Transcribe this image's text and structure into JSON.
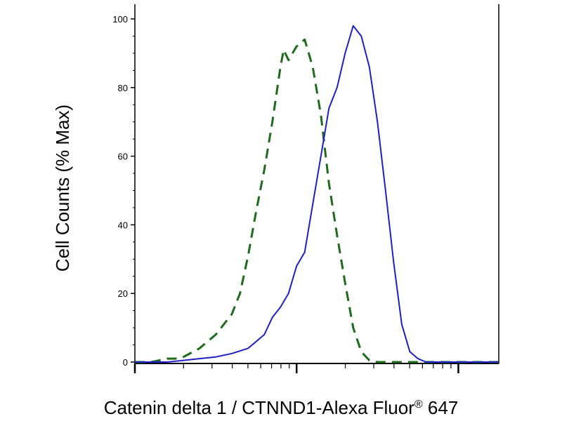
{
  "chart_data": {
    "type": "line",
    "title": "",
    "xlabel": "Catenin delta 1 / CTNND1-Alexa Fluor",
    "xlabel_mark": "®",
    "xlabel_suffix": " 647",
    "ylabel": "Cell Counts (% Max)",
    "x_scale": "log",
    "x_range_decades": [
      0,
      2.25
    ],
    "ylim": [
      0,
      100
    ],
    "y_ticks": [
      0,
      20,
      40,
      60,
      80,
      100
    ],
    "y_tick_labels": [
      "0",
      "20",
      "40",
      "60",
      "80",
      "100"
    ],
    "grid": false,
    "legend": "none",
    "series": [
      {
        "style": "dashed",
        "color": "#1e6b1e",
        "x_decades": [
          0.0,
          0.1,
          0.15,
          0.2,
          0.25,
          0.3,
          0.4,
          0.5,
          0.55,
          0.6,
          0.65,
          0.7,
          0.75,
          0.8,
          0.85,
          0.9,
          0.92,
          0.95,
          1.0,
          1.05,
          1.1,
          1.15,
          1.2,
          1.25,
          1.3,
          1.35,
          1.4,
          1.45,
          1.5,
          1.55,
          1.6,
          1.65,
          1.75,
          2.25
        ],
        "values": [
          0,
          0,
          0.5,
          1,
          1,
          1.5,
          4,
          8,
          11,
          14,
          20,
          31,
          44,
          56,
          70,
          86,
          91,
          88,
          92,
          94,
          86,
          72,
          52,
          37,
          23,
          10,
          3,
          0.5,
          0,
          0,
          0,
          0,
          0,
          0
        ]
      },
      {
        "style": "solid",
        "color": "#1f1fc8",
        "x_decades": [
          0.0,
          0.15,
          0.2,
          0.3,
          0.4,
          0.5,
          0.6,
          0.7,
          0.75,
          0.8,
          0.85,
          0.9,
          0.95,
          1.0,
          1.05,
          1.1,
          1.15,
          1.2,
          1.25,
          1.3,
          1.35,
          1.4,
          1.45,
          1.5,
          1.55,
          1.6,
          1.65,
          1.7,
          1.75,
          1.8,
          1.85,
          1.9,
          2.0,
          2.25
        ],
        "values": [
          0,
          0,
          0,
          0.5,
          1,
          1.5,
          2.5,
          4,
          6,
          8,
          13,
          16,
          20,
          28,
          32,
          46,
          60,
          74,
          80,
          90,
          98,
          95,
          86,
          70,
          50,
          29,
          11,
          3,
          1,
          0,
          0,
          0,
          0,
          0
        ]
      }
    ]
  }
}
